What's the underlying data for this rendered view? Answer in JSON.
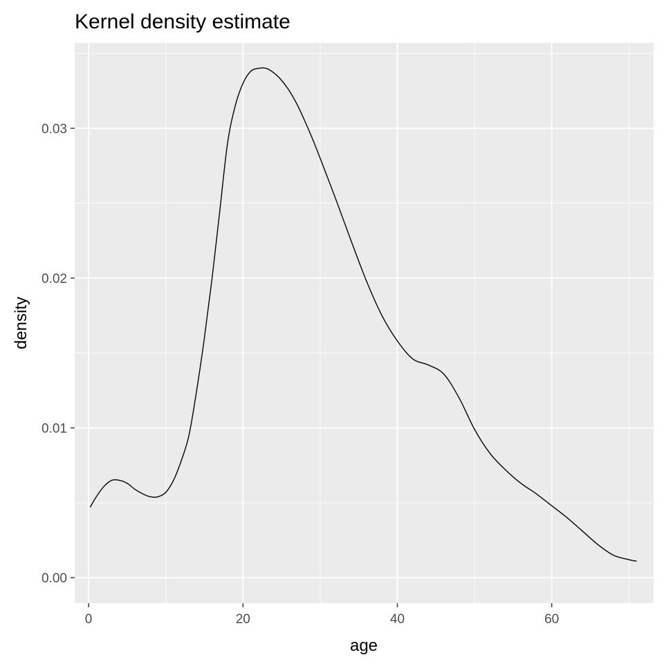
{
  "chart_data": {
    "type": "line",
    "title": "Kernel density estimate",
    "xlabel": "age",
    "ylabel": "density",
    "xlim": [
      -1.8,
      73.2
    ],
    "ylim": [
      -0.0017,
      0.0357
    ],
    "x_ticks": [
      0,
      20,
      40,
      60
    ],
    "x_tick_labels": [
      "0",
      "20",
      "40",
      "60"
    ],
    "y_ticks": [
      0.0,
      0.01,
      0.02,
      0.03
    ],
    "y_tick_labels": [
      "0.00",
      "0.01",
      "0.02",
      "0.03"
    ],
    "grid": true,
    "panel_background": "#ebebeb",
    "grid_color": "#ffffff",
    "line_color": "#000000",
    "series": [
      {
        "x": [
          0.2,
          1,
          2,
          3,
          4,
          5,
          6,
          7,
          8,
          9,
          10,
          11,
          12,
          13,
          14,
          15,
          16,
          17,
          18,
          19,
          20,
          21,
          22,
          23,
          24,
          25,
          26,
          27,
          28,
          29,
          30,
          32,
          34,
          36,
          38,
          40,
          42,
          44,
          46,
          48,
          50,
          52,
          54,
          56,
          58,
          60,
          62,
          64,
          66,
          68,
          70,
          71
        ],
        "values": [
          0.0047,
          0.0054,
          0.0061,
          0.0065,
          0.0065,
          0.0063,
          0.0059,
          0.0056,
          0.0054,
          0.0054,
          0.0057,
          0.0065,
          0.0078,
          0.0095,
          0.0125,
          0.016,
          0.02,
          0.0245,
          0.029,
          0.0315,
          0.033,
          0.0338,
          0.034,
          0.034,
          0.0337,
          0.0332,
          0.0325,
          0.0316,
          0.0305,
          0.0293,
          0.028,
          0.0253,
          0.0225,
          0.0198,
          0.0175,
          0.0158,
          0.0146,
          0.0142,
          0.0136,
          0.012,
          0.0099,
          0.0083,
          0.0072,
          0.0063,
          0.0056,
          0.0048,
          0.004,
          0.0031,
          0.0022,
          0.0015,
          0.0012,
          0.0011
        ]
      }
    ]
  }
}
